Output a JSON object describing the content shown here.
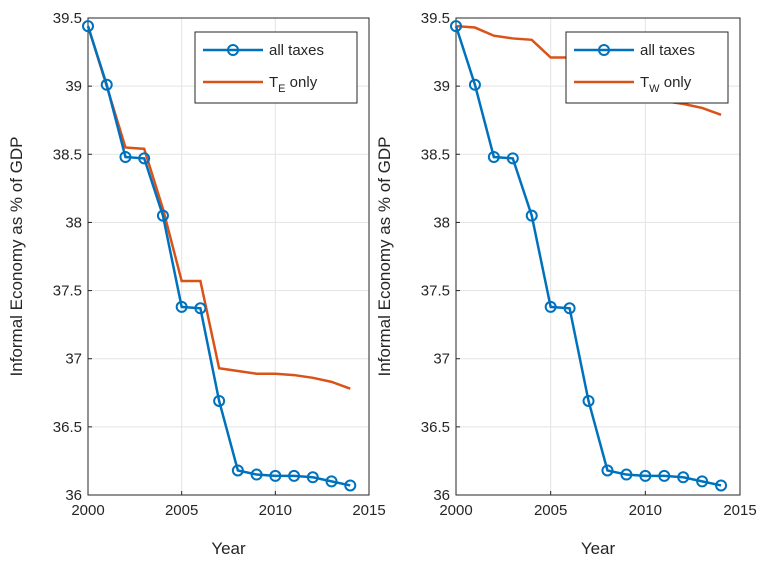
{
  "chart_data": [
    {
      "type": "line",
      "xlabel": "Year",
      "ylabel": "Informal Economy as % of GDP",
      "x": [
        2000,
        2001,
        2002,
        2003,
        2004,
        2005,
        2006,
        2007,
        2008,
        2009,
        2010,
        2011,
        2012,
        2013,
        2014
      ],
      "series": [
        {
          "name": "all taxes",
          "color": "#0072BD",
          "marker": "o",
          "values": [
            39.44,
            39.01,
            38.48,
            38.47,
            38.05,
            37.38,
            37.37,
            36.69,
            36.18,
            36.15,
            36.14,
            36.14,
            36.13,
            36.1,
            36.07
          ]
        },
        {
          "name": "T_E only",
          "color": "#D95319",
          "values": [
            39.44,
            39.0,
            38.55,
            38.54,
            38.1,
            37.57,
            37.57,
            36.93,
            36.91,
            36.89,
            36.89,
            36.88,
            36.86,
            36.83,
            36.78
          ]
        }
      ],
      "xlim": [
        2000,
        2015
      ],
      "xticks": [
        2000,
        2005,
        2010,
        2015
      ],
      "ylim": [
        36,
        39.5
      ],
      "yticks": [
        36,
        36.5,
        37,
        37.5,
        38,
        38.5,
        39,
        39.5
      ],
      "grid": true,
      "legend": "upper-right"
    },
    {
      "type": "line",
      "xlabel": "Year",
      "ylabel": "Informal Economy as % of GDP",
      "x": [
        2000,
        2001,
        2002,
        2003,
        2004,
        2005,
        2006,
        2007,
        2008,
        2009,
        2010,
        2011,
        2012,
        2013,
        2014
      ],
      "series": [
        {
          "name": "all taxes",
          "color": "#0072BD",
          "marker": "o",
          "values": [
            39.44,
            39.01,
            38.48,
            38.47,
            38.05,
            37.38,
            37.37,
            36.69,
            36.18,
            36.15,
            36.14,
            36.14,
            36.13,
            36.1,
            36.07
          ]
        },
        {
          "name": "T_W only",
          "color": "#D95319",
          "values": [
            39.44,
            39.43,
            39.37,
            39.35,
            39.34,
            39.21,
            39.21,
            39.05,
            38.95,
            38.92,
            38.9,
            38.89,
            38.87,
            38.84,
            38.79
          ]
        }
      ],
      "xlim": [
        2000,
        2015
      ],
      "xticks": [
        2000,
        2005,
        2010,
        2015
      ],
      "ylim": [
        36,
        39.5
      ],
      "yticks": [
        36,
        36.5,
        37,
        37.5,
        38,
        38.5,
        39,
        39.5
      ],
      "grid": true,
      "legend": "upper-right"
    }
  ]
}
